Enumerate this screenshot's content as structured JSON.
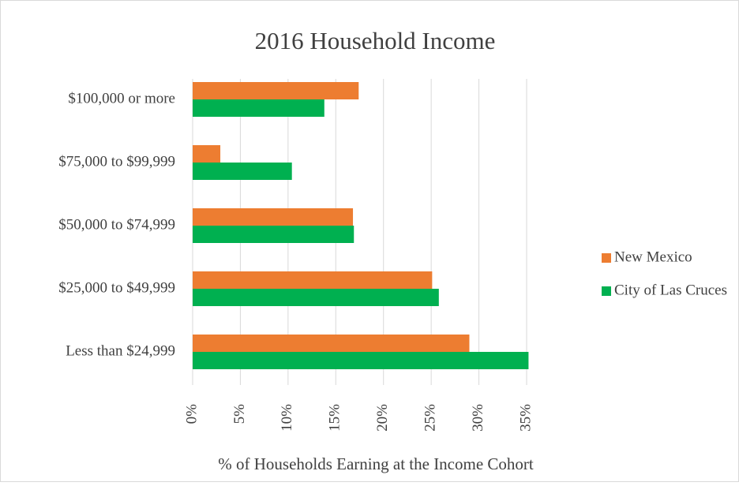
{
  "chart_data": {
    "type": "hbar",
    "title": "2016 Household Income",
    "xlabel": "% of Households Earning at the Income Cohort",
    "categories": [
      "$100,000 or more",
      "$75,000 to $99,999",
      "$50,000 to $74,999",
      "$25,000 to $49,999",
      "Less than $24,999"
    ],
    "series": [
      {
        "name": "New Mexico",
        "color": "#ed7d31",
        "values": [
          17.4,
          2.9,
          16.8,
          25.1,
          29.0
        ]
      },
      {
        "name": "City of Las Cruces",
        "color": "#00b050",
        "values": [
          13.8,
          10.4,
          16.9,
          25.8,
          35.2
        ]
      }
    ],
    "xlim": [
      0,
      35
    ],
    "xticks": [
      {
        "value": 0,
        "label": "0%"
      },
      {
        "value": 5,
        "label": "5%"
      },
      {
        "value": 10,
        "label": "10%"
      },
      {
        "value": 15,
        "label": "15%"
      },
      {
        "value": 20,
        "label": "20%"
      },
      {
        "value": 25,
        "label": "25%"
      },
      {
        "value": 30,
        "label": "30%"
      },
      {
        "value": 35,
        "label": "35%"
      }
    ],
    "grid": true,
    "legend": "right"
  }
}
